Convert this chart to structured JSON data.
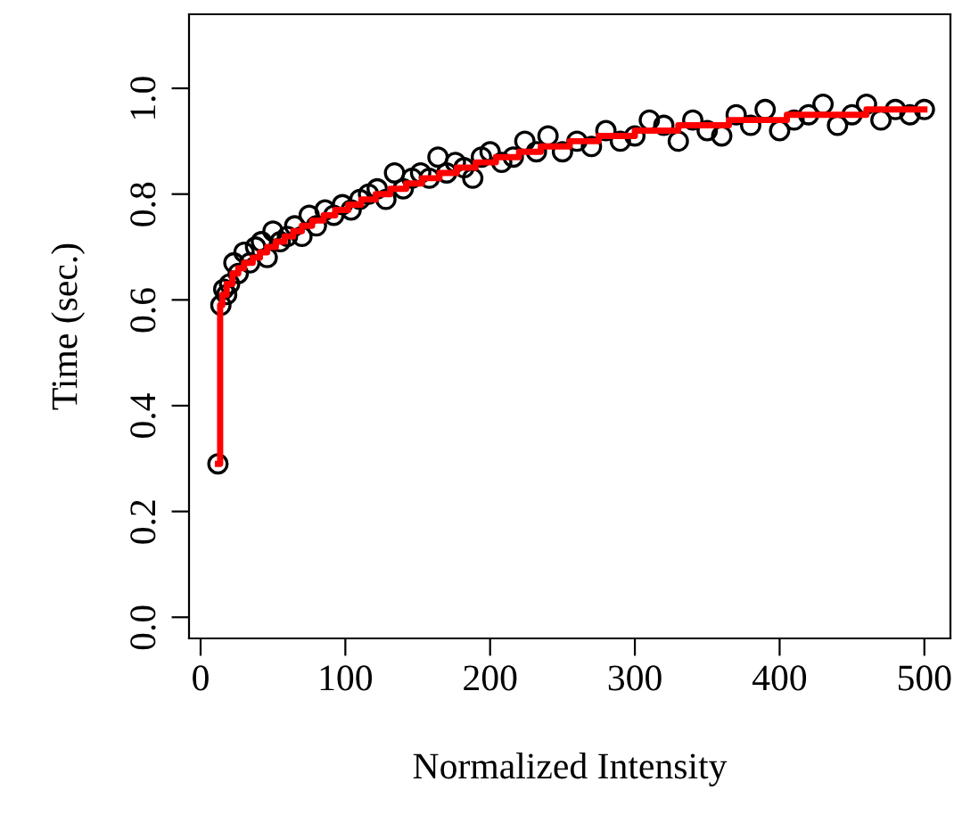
{
  "chart_data": {
    "type": "scatter",
    "xlabel": "Normalized Intensity",
    "ylabel": "Time (sec.)",
    "xlim": [
      -8,
      518
    ],
    "ylim": [
      -0.04,
      1.14
    ],
    "xticks": [
      0,
      100,
      200,
      300,
      400,
      500
    ],
    "yticks": [
      {
        "value": 0,
        "label": "0.0"
      },
      0.2,
      0.4,
      0.6,
      0.8,
      {
        "value": 1,
        "label": "1.0"
      }
    ],
    "grid": false,
    "legend": false,
    "series": [
      {
        "marker": "circle",
        "color": "#000000",
        "x": [
          12,
          14,
          16,
          18,
          20,
          23,
          26,
          30,
          34,
          38,
          42,
          46,
          50,
          55,
          60,
          65,
          70,
          75,
          80,
          86,
          92,
          98,
          104,
          110,
          116,
          122,
          128,
          134,
          140,
          146,
          152,
          158,
          164,
          170,
          176,
          182,
          188,
          194,
          200,
          208,
          216,
          224,
          232,
          240,
          250,
          260,
          270,
          280,
          290,
          300,
          310,
          320,
          330,
          340,
          350,
          360,
          370,
          380,
          390,
          400,
          410,
          420,
          430,
          440,
          450,
          460,
          470,
          480,
          490,
          500
        ],
        "values": [
          0.29,
          0.59,
          0.62,
          0.61,
          0.63,
          0.67,
          0.65,
          0.69,
          0.67,
          0.7,
          0.71,
          0.68,
          0.73,
          0.71,
          0.72,
          0.74,
          0.72,
          0.76,
          0.74,
          0.77,
          0.76,
          0.78,
          0.77,
          0.79,
          0.8,
          0.81,
          0.79,
          0.84,
          0.81,
          0.83,
          0.84,
          0.83,
          0.87,
          0.84,
          0.86,
          0.85,
          0.83,
          0.87,
          0.88,
          0.86,
          0.87,
          0.9,
          0.88,
          0.91,
          0.88,
          0.9,
          0.89,
          0.92,
          0.9,
          0.91,
          0.94,
          0.93,
          0.9,
          0.94,
          0.92,
          0.91,
          0.95,
          0.93,
          0.96,
          0.92,
          0.94,
          0.95,
          0.97,
          0.93,
          0.95,
          0.97,
          0.94,
          0.96,
          0.95,
          0.96
        ]
      },
      {
        "type": "step",
        "marker": "none",
        "color": "#ff0000",
        "x": [
          12,
          13.5,
          15,
          18,
          22,
          26,
          30,
          36,
          41,
          46,
          52,
          58,
          64,
          70,
          77,
          85,
          93,
          102,
          111,
          121,
          131,
          142,
          153,
          165,
          177,
          190,
          204,
          220,
          235,
          255,
          275,
          300,
          330,
          365,
          405,
          460,
          500
        ],
        "values": [
          0.29,
          0.59,
          0.61,
          0.63,
          0.65,
          0.66,
          0.67,
          0.68,
          0.69,
          0.7,
          0.71,
          0.72,
          0.73,
          0.74,
          0.75,
          0.76,
          0.77,
          0.78,
          0.79,
          0.8,
          0.81,
          0.82,
          0.83,
          0.84,
          0.85,
          0.86,
          0.87,
          0.88,
          0.89,
          0.9,
          0.91,
          0.92,
          0.93,
          0.94,
          0.95,
          0.96,
          0.96
        ]
      }
    ]
  }
}
